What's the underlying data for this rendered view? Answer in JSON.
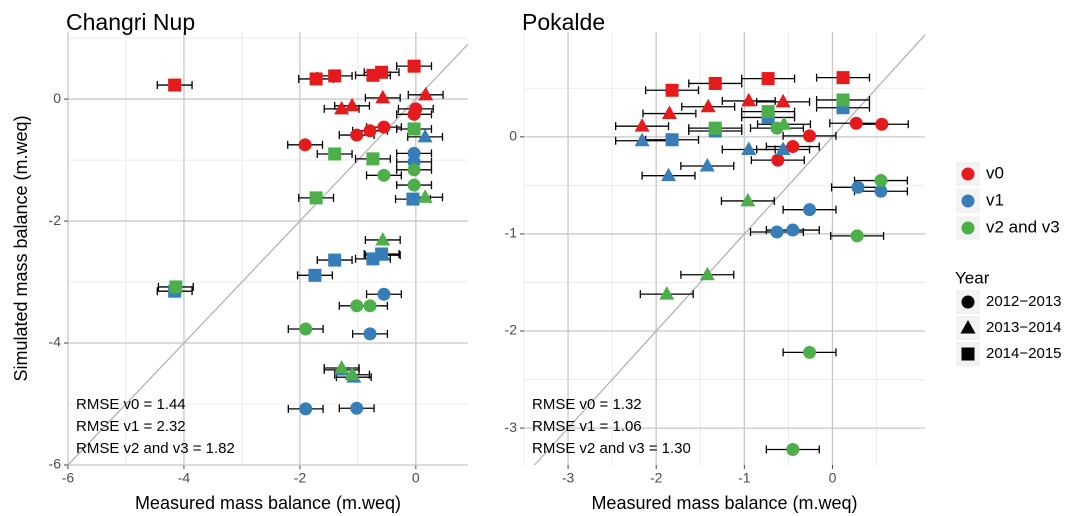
{
  "chart_data": [
    {
      "type": "scatter",
      "title": "Changri Nup",
      "xlabel": "Measured mass balance (m.weq)",
      "ylabel": "Simulated mass balance (m.weq)",
      "xlim": [
        -6,
        0.9
      ],
      "ylim": [
        -6,
        1.1
      ],
      "xticks": [
        -6,
        -4,
        -2,
        0
      ],
      "yticks": [
        -6,
        -4,
        -2,
        0
      ],
      "grid": true,
      "minor_grid": true,
      "identity_line": true,
      "annotations": [
        "RMSE v0 = 1.44",
        "RMSE v1 = 2.32",
        "RMSE v2 and v3 = 1.82"
      ],
      "series": [
        {
          "color": "#e41a1c",
          "shape": "circle",
          "x": [
            -1.91,
            -1.02,
            -0.79,
            -0.55,
            -0.03,
            0
          ],
          "y": [
            -0.75,
            -0.59,
            -0.52,
            -0.46,
            -0.25,
            -0.16
          ],
          "xerr": [
            0.3,
            0.3,
            0.3,
            0.3,
            0.3,
            0.3
          ]
        },
        {
          "color": "#e41a1c",
          "shape": "triangle",
          "x": [
            -1.28,
            -1.1,
            -0.57,
            0.17
          ],
          "y": [
            -0.16,
            -0.11,
            0.02,
            0.07
          ],
          "xerr": [
            0.3,
            0.3,
            0.3,
            0.3
          ]
        },
        {
          "color": "#e41a1c",
          "shape": "square",
          "x": [
            -4.16,
            -1.72,
            -1.4,
            -0.74,
            -0.59,
            -0.03
          ],
          "y": [
            0.23,
            0.33,
            0.38,
            0.39,
            0.44,
            0.54
          ],
          "xerr": [
            0.3,
            0.3,
            0.3,
            0.3,
            0.3,
            0.3
          ]
        },
        {
          "color": "#377eb8",
          "shape": "circle",
          "x": [
            -0.03,
            -0.03,
            -0.55,
            -0.79,
            -1.9,
            -1.02
          ],
          "y": [
            -0.89,
            -1.03,
            -3.2,
            -3.85,
            -5.08,
            -5.07
          ],
          "xerr": [
            0.3,
            0.3,
            0.3,
            0.3,
            0.3,
            0.3
          ]
        },
        {
          "color": "#377eb8",
          "shape": "triangle",
          "x": [
            0.16,
            -0.57,
            -1.28,
            -1.07
          ],
          "y": [
            -0.62,
            -2.56,
            -4.44,
            -4.56
          ],
          "xerr": [
            0.3,
            0.3,
            0.3,
            0.3
          ]
        },
        {
          "color": "#377eb8",
          "shape": "square",
          "x": [
            -4.16,
            -1.74,
            -1.4,
            -0.74,
            -0.59,
            -0.05
          ],
          "y": [
            -3.15,
            -2.89,
            -2.64,
            -2.62,
            -2.54,
            -1.64
          ],
          "xerr": [
            0.3,
            0.3,
            0.3,
            0.3,
            0.3,
            0.3
          ]
        },
        {
          "color": "#4daf4a",
          "shape": "circle",
          "x": [
            -0.55,
            -0.03,
            -0.03,
            -1.9,
            -1.02,
            -0.79
          ],
          "y": [
            -1.25,
            -1.16,
            -1.41,
            -3.77,
            -3.39,
            -3.39
          ],
          "xerr": [
            0.3,
            0.3,
            0.3,
            0.3,
            0.3,
            0.3
          ]
        },
        {
          "color": "#4daf4a",
          "shape": "triangle",
          "x": [
            0.16,
            -0.57,
            -1.28,
            -1.1
          ],
          "y": [
            -1.61,
            -2.31,
            -4.41,
            -4.52
          ],
          "xerr": [
            0.3,
            0.3,
            0.3,
            0.3
          ]
        },
        {
          "color": "#4daf4a",
          "shape": "square",
          "x": [
            -4.14,
            -1.72,
            -1.4,
            -0.74,
            -0.03
          ],
          "y": [
            -3.08,
            -1.62,
            -0.9,
            -0.98,
            -0.49
          ],
          "xerr": [
            0.3,
            0.3,
            0.3,
            0.3,
            0.3
          ]
        }
      ]
    },
    {
      "type": "scatter",
      "title": "Pokalde",
      "xlabel": "Measured mass balance (m.weq)",
      "xlim": [
        -3.5,
        1.05
      ],
      "ylim": [
        -3.38,
        1.08
      ],
      "xticks": [
        -3,
        -2,
        -1,
        0
      ],
      "yticks": [
        -3,
        -2,
        -1,
        0
      ],
      "grid": true,
      "minor_grid": true,
      "identity_line": true,
      "annotations": [
        "RMSE v0 = 1.32",
        "RMSE v1 = 1.06",
        "RMSE v2 and v3 = 1.30"
      ],
      "series": [
        {
          "color": "#e41a1c",
          "shape": "circle",
          "x": [
            -0.62,
            -0.45,
            -0.26,
            0.27,
            0.56
          ],
          "y": [
            -0.24,
            -0.1,
            0.01,
            0.14,
            0.13
          ],
          "xerr": [
            0.3,
            0.3,
            0.3,
            0.3,
            0.3
          ]
        },
        {
          "color": "#e41a1c",
          "shape": "triangle",
          "x": [
            -2.16,
            -1.85,
            -1.41,
            -0.95,
            -0.56
          ],
          "y": [
            0.11,
            0.24,
            0.31,
            0.37,
            0.36
          ],
          "xerr": [
            0.3,
            0.3,
            0.3,
            0.3,
            0.3
          ]
        },
        {
          "color": "#e41a1c",
          "shape": "square",
          "x": [
            -1.82,
            -1.33,
            -0.73,
            0.12
          ],
          "y": [
            0.48,
            0.55,
            0.6,
            0.61
          ],
          "xerr": [
            0.3,
            0.3,
            0.3,
            0.3
          ]
        },
        {
          "color": "#377eb8",
          "shape": "circle",
          "x": [
            0.29,
            0.55,
            -0.26,
            -0.63,
            -0.45
          ],
          "y": [
            -0.52,
            -0.56,
            -0.75,
            -0.98,
            -0.96
          ],
          "xerr": [
            0.3,
            0.3,
            0.3,
            0.3,
            0.3
          ]
        },
        {
          "color": "#377eb8",
          "shape": "triangle",
          "x": [
            -2.16,
            -1.86,
            -1.42,
            -0.95,
            -0.56
          ],
          "y": [
            -0.04,
            -0.4,
            -0.3,
            -0.13,
            -0.13
          ],
          "xerr": [
            0.3,
            0.3,
            0.3,
            0.3,
            0.3
          ]
        },
        {
          "color": "#377eb8",
          "shape": "square",
          "x": [
            -1.82,
            -1.33,
            -0.73,
            0.12
          ],
          "y": [
            -0.03,
            0.06,
            0.2,
            0.3
          ],
          "xerr": [
            0.3,
            0.3,
            0.3,
            0.3
          ]
        },
        {
          "color": "#4daf4a",
          "shape": "circle",
          "x": [
            -0.63,
            0.55,
            0.28,
            -0.26,
            -0.45
          ],
          "y": [
            0.09,
            -0.45,
            -1.02,
            -2.22,
            -3.22
          ],
          "xerr": [
            0.3,
            0.3,
            0.3,
            0.3,
            0.3
          ]
        },
        {
          "color": "#4daf4a",
          "shape": "triangle",
          "x": [
            -0.96,
            -1.42,
            -1.88,
            -0.55
          ],
          "y": [
            -0.66,
            -1.42,
            -1.62,
            0.13
          ],
          "xerr": [
            0.3,
            0.3,
            0.3,
            0.3
          ]
        },
        {
          "color": "#4daf4a",
          "shape": "square",
          "x": [
            -1.33,
            -0.73,
            0.12
          ],
          "y": [
            0.09,
            0.26,
            0.38
          ],
          "xerr": [
            0.3,
            0.3,
            0.3
          ]
        }
      ]
    }
  ],
  "legend": {
    "colors": [
      {
        "name": "v0",
        "color": "#e41a1c"
      },
      {
        "name": "v1",
        "color": "#377eb8"
      },
      {
        "name": "v2 and v3",
        "color": "#4daf4a"
      }
    ],
    "shape_title": "Year",
    "shapes": [
      {
        "name": "2012−2013",
        "shape": "circle"
      },
      {
        "name": "2013−2014",
        "shape": "triangle"
      },
      {
        "name": "2014−2015",
        "shape": "square"
      }
    ]
  }
}
